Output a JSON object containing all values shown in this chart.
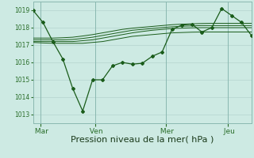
{
  "background_color": "#cdeae3",
  "grid_color": "#b8d8d2",
  "line_color": "#1a5c1a",
  "xlabel": "Pression niveau de la mer( hPa )",
  "xlabel_fontsize": 8,
  "tick_color": "#2a6e2a",
  "ylim": [
    1012.5,
    1019.5
  ],
  "yticks": [
    1013,
    1014,
    1015,
    1016,
    1017,
    1018,
    1019
  ],
  "xtick_labels": [
    " Mar",
    " Ven",
    " Mer",
    " Jeu"
  ],
  "xtick_positions": [
    0.5,
    4.0,
    8.5,
    12.5
  ],
  "vline_positions": [
    0.5,
    4.0,
    8.5,
    12.5
  ],
  "series_main": [
    1019.0,
    1018.3,
    1017.2,
    1016.2,
    1014.5,
    1013.2,
    1015.0,
    1015.0,
    1015.8,
    1016.0,
    1015.9,
    1015.95,
    1016.35,
    1016.6,
    1017.9,
    1018.15,
    1018.2,
    1017.75,
    1018.0,
    1019.1,
    1018.7,
    1018.3,
    1017.55
  ],
  "series_band": [
    [
      1017.15,
      1017.12,
      1017.1,
      1017.1,
      1017.1,
      1017.1,
      1017.15,
      1017.2,
      1017.3,
      1017.4,
      1017.5,
      1017.55,
      1017.6,
      1017.65,
      1017.7,
      1017.72,
      1017.74,
      1017.75,
      1017.75,
      1017.75,
      1017.75,
      1017.75,
      1017.75
    ],
    [
      1017.2,
      1017.2,
      1017.2,
      1017.2,
      1017.2,
      1017.25,
      1017.3,
      1017.4,
      1017.5,
      1017.6,
      1017.7,
      1017.78,
      1017.85,
      1017.9,
      1017.95,
      1017.97,
      1017.99,
      1018.0,
      1018.0,
      1018.0,
      1018.0,
      1018.0,
      1018.0
    ],
    [
      1017.3,
      1017.3,
      1017.3,
      1017.3,
      1017.32,
      1017.38,
      1017.45,
      1017.55,
      1017.65,
      1017.75,
      1017.85,
      1017.9,
      1017.95,
      1018.0,
      1018.05,
      1018.08,
      1018.1,
      1018.12,
      1018.12,
      1018.12,
      1018.12,
      1018.12,
      1018.12
    ],
    [
      1017.4,
      1017.4,
      1017.4,
      1017.42,
      1017.45,
      1017.52,
      1017.6,
      1017.7,
      1017.8,
      1017.9,
      1017.97,
      1018.02,
      1018.07,
      1018.12,
      1018.17,
      1018.2,
      1018.22,
      1018.24,
      1018.25,
      1018.25,
      1018.25,
      1018.25,
      1018.25
    ]
  ]
}
